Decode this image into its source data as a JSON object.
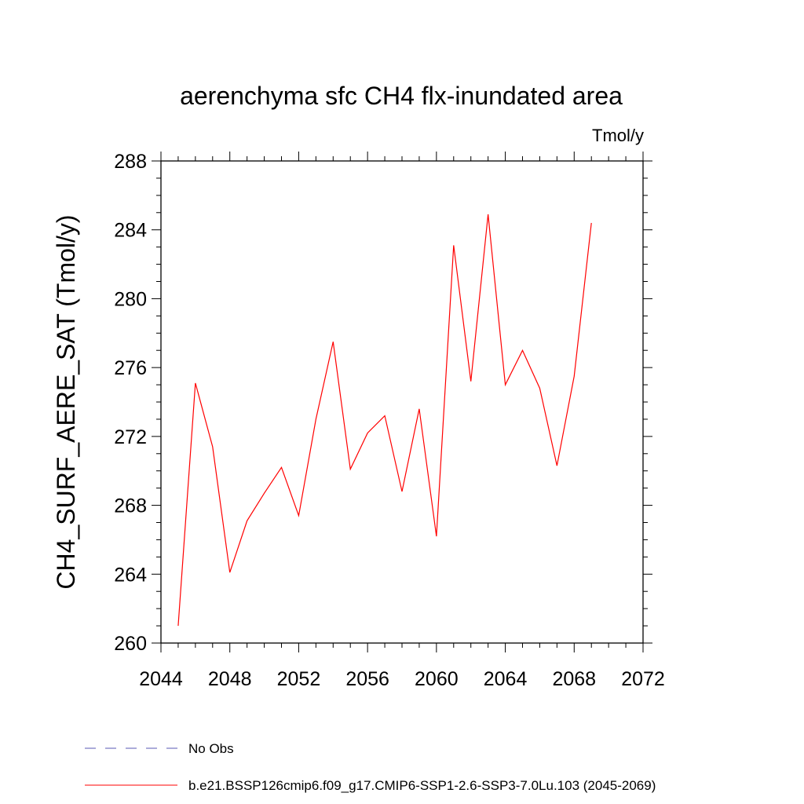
{
  "chart_data": {
    "type": "line",
    "title": "aerenchyma sfc CH4 flx-inundated area",
    "units_label": "Tmol/y",
    "xlabel": "",
    "ylabel": "CH4_SURF_AERE_SAT  (Tmol/y)",
    "xlim": [
      2044,
      2072
    ],
    "ylim": [
      260,
      288
    ],
    "x_ticks": [
      "2044",
      "2048",
      "2052",
      "2056",
      "2060",
      "2064",
      "2068",
      "2072"
    ],
    "y_ticks": [
      "260",
      "264",
      "268",
      "272",
      "276",
      "280",
      "284",
      "288"
    ],
    "grid": false,
    "legend_position": "bottom",
    "series": [
      {
        "name": "No Obs",
        "color": "#5a5ab4",
        "style": "dashed",
        "x": [],
        "values": []
      },
      {
        "name": "b.e21.BSSP126cmip6.f09_g17.CMIP6-SSP1-2.6-SSP3-7.0Lu.103 (2045-2069)",
        "color": "#ff0000",
        "style": "solid",
        "x": [
          2045,
          2046,
          2047,
          2048,
          2049,
          2050,
          2051,
          2052,
          2053,
          2054,
          2055,
          2056,
          2057,
          2058,
          2059,
          2060,
          2061,
          2062,
          2063,
          2064,
          2065,
          2066,
          2067,
          2068,
          2069
        ],
        "values": [
          261.0,
          275.1,
          271.4,
          264.1,
          267.1,
          268.7,
          270.2,
          267.4,
          273.0,
          277.5,
          270.1,
          272.2,
          273.2,
          268.8,
          273.6,
          266.2,
          283.1,
          275.2,
          284.9,
          275.0,
          277.0,
          274.8,
          270.3,
          275.5,
          284.4
        ]
      }
    ]
  }
}
